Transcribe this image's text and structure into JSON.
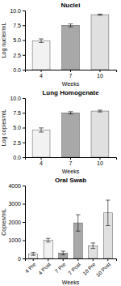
{
  "chart_data": [
    {
      "type": "bar",
      "title": "Nuclei",
      "xlabel": "Weeks",
      "ylabel": "Log nuclei/mL",
      "categories": [
        "4",
        "7",
        "10"
      ],
      "values": [
        4.9,
        7.5,
        9.3
      ],
      "errors": [
        0.3,
        0.25,
        0.1
      ],
      "colors": [
        "#f2f2f2",
        "#a8a8a8",
        "#e0e0e0"
      ],
      "ylim": [
        0,
        10
      ],
      "yticks": [
        {
          "value": 0,
          "label": "0.0"
        },
        2.5,
        {
          "value": 5,
          "label": "5.0"
        },
        7.5,
        {
          "value": 10,
          "label": "10.0"
        }
      ]
    },
    {
      "type": "bar",
      "title": "Lung Homogenate",
      "xlabel": "Weeks",
      "ylabel": "Log copies/mL",
      "categories": [
        "4",
        "7",
        "10"
      ],
      "values": [
        4.6,
        7.5,
        7.8
      ],
      "errors": [
        0.35,
        0.2,
        0.15
      ],
      "colors": [
        "#f2f2f2",
        "#a8a8a8",
        "#e0e0e0"
      ],
      "ylim": [
        0,
        10
      ],
      "yticks": [
        {
          "value": 0,
          "label": "0.0"
        },
        2.5,
        {
          "value": 5,
          "label": "5.0"
        },
        7.5,
        {
          "value": 10,
          "label": "10.0"
        }
      ]
    },
    {
      "type": "bar",
      "title": "Oral Swab",
      "xlabel": "Weeks",
      "ylabel": "Copies/mL",
      "categories": [
        "4 Pre",
        "4 Post",
        "7 Pre",
        "7 Post",
        "10 Pre",
        "10 Post"
      ],
      "values": [
        250,
        1000,
        300,
        1950,
        700,
        2500
      ],
      "errors": [
        80,
        100,
        100,
        450,
        150,
        700
      ],
      "colors": [
        "#f2f2f2",
        "#f2f2f2",
        "#a8a8a8",
        "#a8a8a8",
        "#e0e0e0",
        "#e0e0e0"
      ],
      "ylim": [
        0,
        4000
      ],
      "yticks": [
        0,
        1000,
        2000,
        3000,
        4000
      ]
    }
  ]
}
